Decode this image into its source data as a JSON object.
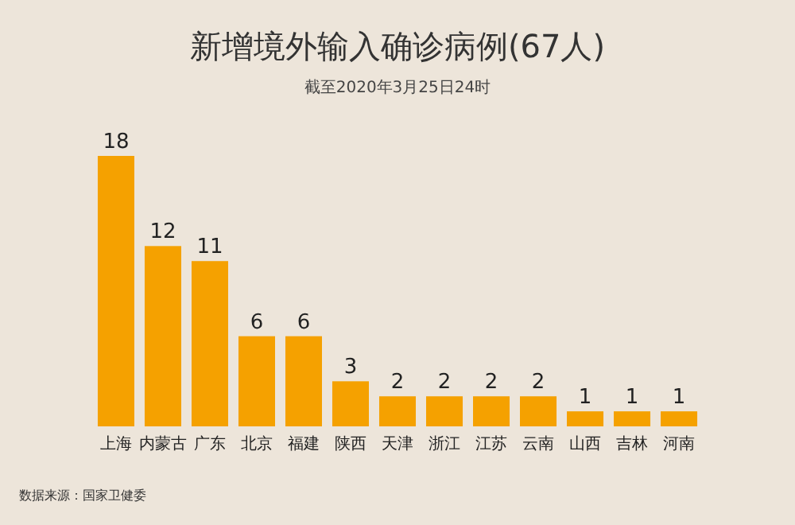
{
  "chart_data": {
    "type": "bar",
    "title": "新增境外输入确诊病例(67人)",
    "subtitle": "截至2020年3月25日24时",
    "categories": [
      "上海",
      "内蒙古",
      "广东",
      "北京",
      "福建",
      "陕西",
      "天津",
      "浙江",
      "江苏",
      "云南",
      "山西",
      "吉林",
      "河南"
    ],
    "values": [
      18,
      12,
      11,
      6,
      6,
      3,
      2,
      2,
      2,
      2,
      1,
      1,
      1
    ],
    "color": "#f5a100",
    "data_labels": true,
    "annotations": [
      "数据来源：国家卫健委"
    ]
  }
}
